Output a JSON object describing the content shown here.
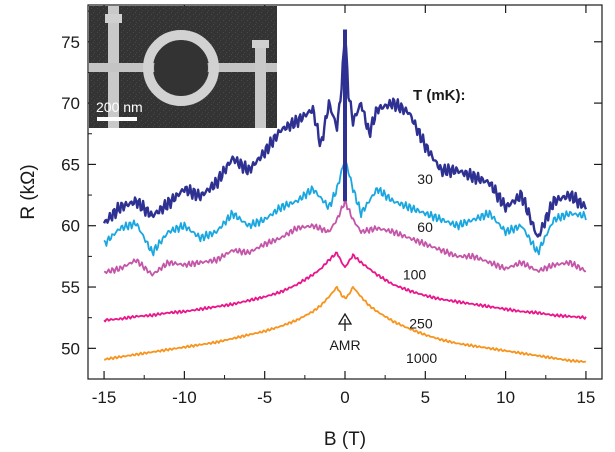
{
  "chart_data": {
    "type": "line",
    "xlabel": "B (T)",
    "ylabel": "R (kΩ)",
    "xlim": [
      -16,
      16
    ],
    "ylim": [
      47.5,
      78
    ],
    "xticks": [
      -15,
      -10,
      -5,
      0,
      5,
      10,
      15
    ],
    "yticks": [
      50,
      55,
      60,
      65,
      70,
      75
    ],
    "legend_title": "T (mK):",
    "annotation": "AMR",
    "annotation_point": [
      0,
      53.3
    ],
    "inset": {
      "type": "SEM micrograph of ring device",
      "scale_bar_label": "200 nm"
    },
    "series": [
      {
        "name": "30",
        "color": "#2e3192",
        "x": [
          -15,
          -14,
          -13,
          -12,
          -11,
          -10,
          -9,
          -8,
          -7,
          -6,
          -5,
          -4,
          -3,
          -2,
          -1.5,
          -1,
          -0.5,
          -0.2,
          0,
          0.2,
          0.5,
          1,
          1.5,
          2,
          3,
          4,
          5,
          6,
          7,
          8,
          9,
          10,
          11,
          12,
          13,
          14,
          15
        ],
        "y": [
          60.2,
          61.5,
          62.0,
          60.8,
          61.8,
          63.0,
          62.4,
          63.5,
          65.5,
          64.5,
          66.0,
          67.8,
          68.5,
          69.5,
          66.5,
          70.0,
          68.0,
          71.5,
          76.0,
          71.0,
          68.5,
          70.0,
          67.5,
          69.5,
          70.0,
          69.2,
          66.5,
          64.5,
          64.5,
          64.0,
          63.5,
          61.5,
          62.5,
          59.0,
          62.0,
          62.5,
          61.5
        ]
      },
      {
        "name": "60",
        "color": "#1aa7e0",
        "x": [
          -15,
          -14,
          -13,
          -12,
          -11,
          -10,
          -9,
          -8,
          -7,
          -6,
          -5,
          -4,
          -3,
          -2,
          -1,
          -0.5,
          0,
          0.5,
          1,
          2,
          3,
          4,
          5,
          6,
          7,
          8,
          9,
          10,
          11,
          12,
          13,
          14,
          15
        ],
        "y": [
          58.5,
          59.8,
          60.2,
          57.8,
          59.5,
          60.0,
          59.0,
          59.5,
          61.0,
          60.0,
          60.5,
          61.5,
          62.0,
          63.0,
          61.5,
          63.0,
          65.5,
          63.0,
          61.0,
          63.0,
          62.0,
          61.5,
          61.0,
          60.5,
          60.0,
          60.5,
          61.0,
          59.5,
          60.0,
          57.8,
          60.5,
          61.0,
          60.8
        ]
      },
      {
        "name": "100",
        "color": "#c455a8",
        "x": [
          -15,
          -14,
          -13,
          -12,
          -11,
          -10,
          -9,
          -8,
          -7,
          -6,
          -5,
          -4,
          -3,
          -2,
          -1,
          -0.5,
          0,
          0.5,
          1,
          2,
          3,
          4,
          5,
          6,
          7,
          8,
          9,
          10,
          11,
          12,
          13,
          14,
          15
        ],
        "y": [
          56.2,
          56.5,
          57.2,
          56.0,
          57.0,
          56.8,
          57.0,
          57.2,
          58.0,
          57.8,
          58.5,
          59.0,
          59.8,
          60.0,
          59.5,
          60.5,
          62.0,
          60.5,
          59.5,
          59.8,
          59.5,
          59.0,
          58.5,
          58.0,
          57.5,
          57.5,
          57.0,
          56.5,
          57.0,
          56.3,
          56.8,
          57.0,
          56.3
        ]
      },
      {
        "name": "250",
        "color": "#e8168a",
        "x": [
          -15,
          -14,
          -13,
          -12,
          -11,
          -10,
          -9,
          -8,
          -7,
          -6,
          -5,
          -4,
          -3,
          -2,
          -1.5,
          -1,
          -0.5,
          -0.2,
          0,
          0.2,
          0.5,
          1,
          1.5,
          2,
          3,
          4,
          5,
          6,
          7,
          8,
          9,
          10,
          11,
          12,
          13,
          14,
          15
        ],
        "y": [
          52.3,
          52.4,
          52.6,
          52.7,
          52.9,
          53.0,
          53.2,
          53.4,
          53.6,
          53.9,
          54.2,
          54.6,
          55.2,
          56.0,
          56.5,
          57.2,
          57.8,
          57.0,
          56.6,
          57.0,
          57.6,
          57.0,
          56.5,
          56.0,
          55.2,
          54.7,
          54.3,
          54.0,
          53.8,
          53.6,
          53.4,
          53.2,
          53.0,
          52.9,
          52.7,
          52.6,
          52.5
        ]
      },
      {
        "name": "1000",
        "color": "#f7941d",
        "x": [
          -15,
          -14,
          -13,
          -12,
          -11,
          -10,
          -9,
          -8,
          -7,
          -6,
          -5,
          -4,
          -3,
          -2,
          -1.5,
          -1,
          -0.5,
          -0.2,
          0,
          0.2,
          0.5,
          1,
          1.5,
          2,
          3,
          4,
          5,
          6,
          7,
          8,
          9,
          10,
          11,
          12,
          13,
          14,
          15
        ],
        "y": [
          49.1,
          49.3,
          49.5,
          49.7,
          49.9,
          50.1,
          50.3,
          50.5,
          50.8,
          51.1,
          51.4,
          51.8,
          52.3,
          53.0,
          53.5,
          54.2,
          55.0,
          54.3,
          54.1,
          54.3,
          55.0,
          54.2,
          53.5,
          53.0,
          52.2,
          51.6,
          51.1,
          50.7,
          50.4,
          50.2,
          50.0,
          49.8,
          49.6,
          49.4,
          49.2,
          49.0,
          48.9
        ]
      }
    ]
  }
}
